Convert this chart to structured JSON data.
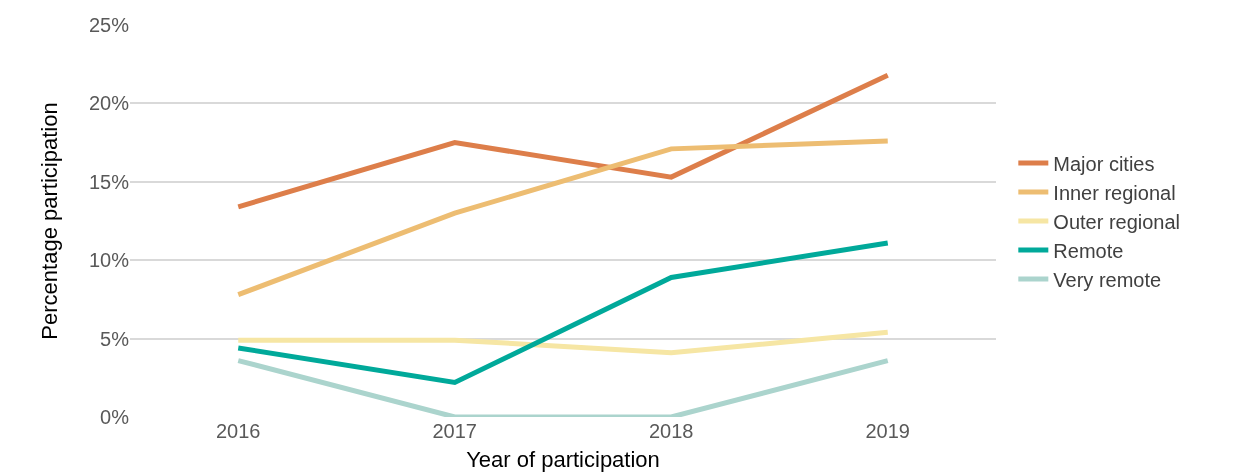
{
  "chart_data": {
    "type": "line",
    "xlabel": "Year of participation",
    "ylabel": "Percentage participation",
    "categories": [
      "2016",
      "2017",
      "2018",
      "2019"
    ],
    "series": [
      {
        "name": "Major cities",
        "color": "#dd7e4a",
        "values": [
          13.4,
          17.5,
          15.3,
          21.8
        ]
      },
      {
        "name": "Inner regional",
        "color": "#edbd72",
        "values": [
          7.8,
          13.0,
          17.1,
          17.6
        ]
      },
      {
        "name": "Outer regional",
        "color": "#f6e6a4",
        "values": [
          4.9,
          4.9,
          4.1,
          5.4
        ]
      },
      {
        "name": "Remote",
        "color": "#00a99a",
        "values": [
          4.4,
          2.2,
          8.9,
          11.1
        ]
      },
      {
        "name": "Very remote",
        "color": "#abd4cd",
        "values": [
          3.6,
          0,
          0,
          3.6
        ]
      }
    ],
    "ylim": [
      0,
      25
    ],
    "yticks": [
      {
        "value": 0,
        "label": "0%"
      },
      {
        "value": 5,
        "label": "5%"
      },
      {
        "value": 10,
        "label": "10%"
      },
      {
        "value": 15,
        "label": "15%"
      },
      {
        "value": 20,
        "label": "20%"
      },
      {
        "value": 25,
        "label": "25%"
      }
    ],
    "grid": "y",
    "legend": "right",
    "marker": "none",
    "line_style": "solid"
  }
}
